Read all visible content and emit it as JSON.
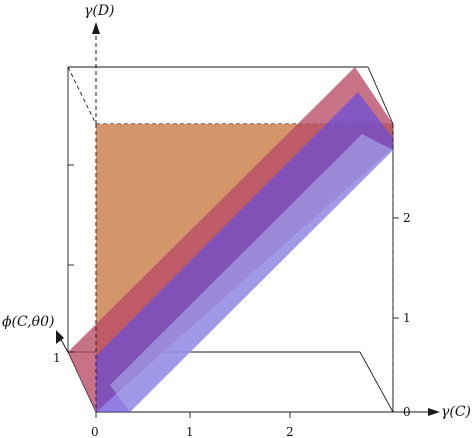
{
  "axes": {
    "vertical_label": "γ(D)",
    "horizontal_label": "γ(C)",
    "depth_label": "ϕ(C,θ0)"
  },
  "ticks": {
    "bottom": [
      "0",
      "1",
      "2"
    ],
    "right": [
      "0",
      "1",
      "2"
    ],
    "depth": [
      "1"
    ]
  },
  "colors": {
    "orange_surface": "#d0895a",
    "red_band": "#b84a66",
    "blue_band": "#6a4ed8",
    "edge_fill": "#a9a7e9",
    "frame": "#1a1a1a"
  }
}
